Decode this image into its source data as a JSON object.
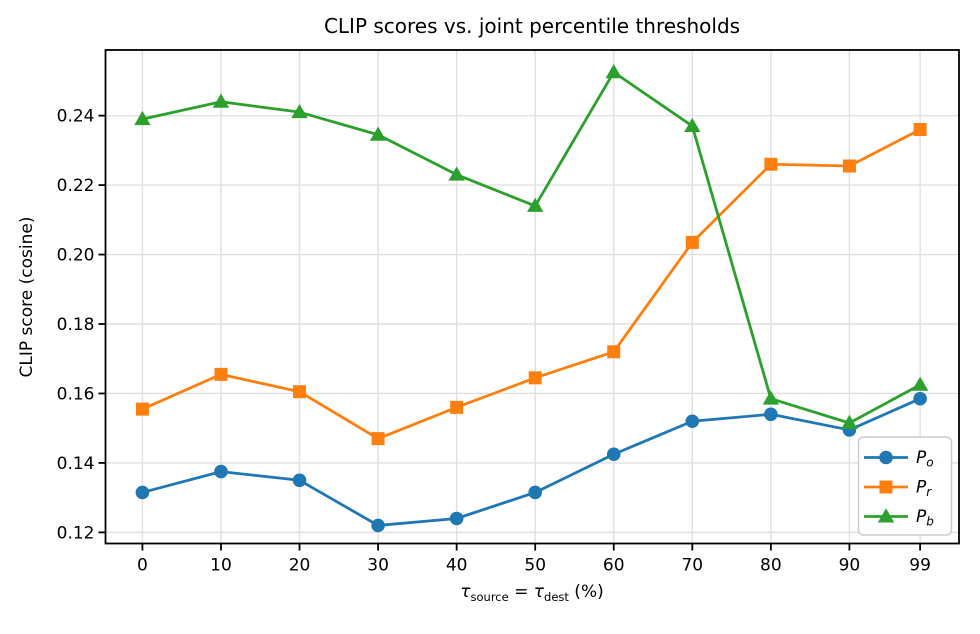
{
  "figure": {
    "title": "CLIP scores vs. joint percentile thresholds"
  },
  "chart_data": {
    "type": "line",
    "title": "CLIP scores vs. joint percentile thresholds",
    "xlabel": "τ_source = τ_dest (%)",
    "xlabel_parts": {
      "tau1": "τ",
      "sub1": "source",
      "equals": " = ",
      "tau2": "τ",
      "sub2": "dest",
      "suffix": " (%)"
    },
    "ylabel": "CLIP score (cosine)",
    "x": [
      0,
      10,
      20,
      30,
      40,
      50,
      60,
      70,
      80,
      90,
      99
    ],
    "xtick_labels": [
      "0",
      "10",
      "20",
      "30",
      "40",
      "50",
      "60",
      "70",
      "80",
      "90",
      "99"
    ],
    "yticks": [
      0.12,
      0.14,
      0.16,
      0.18,
      0.2,
      0.22,
      0.24
    ],
    "ytick_decimals": 2,
    "xlim": [
      -4.7,
      103.95
    ],
    "ylim": [
      0.1168,
      0.2589
    ],
    "grid": true,
    "legend": {
      "position": "lower right",
      "entries": [
        {
          "base": "P",
          "sub": "o"
        },
        {
          "base": "P",
          "sub": "r"
        },
        {
          "base": "P",
          "sub": "b"
        }
      ]
    },
    "series": [
      {
        "name": "P_o",
        "marker": "circle",
        "color": "#1f77b4",
        "values": [
          0.1315,
          0.1375,
          0.135,
          0.122,
          0.124,
          0.1315,
          0.1425,
          0.152,
          0.154,
          0.1495,
          0.1585
        ]
      },
      {
        "name": "P_r",
        "marker": "square",
        "color": "#ff7f0e",
        "values": [
          0.1555,
          0.1655,
          0.1605,
          0.147,
          0.156,
          0.1645,
          0.172,
          0.2035,
          0.226,
          0.2255,
          0.236
        ]
      },
      {
        "name": "P_b",
        "marker": "triangle",
        "color": "#2ca02c",
        "values": [
          0.239,
          0.244,
          0.241,
          0.2345,
          0.223,
          0.214,
          0.2525,
          0.237,
          0.1585,
          0.1515,
          0.1625
        ]
      }
    ],
    "colors": {
      "background": "#ffffff",
      "grid": "#e0e0e0",
      "spine": "#000000",
      "text": "#000000",
      "legend_border": "#cccccc"
    }
  }
}
